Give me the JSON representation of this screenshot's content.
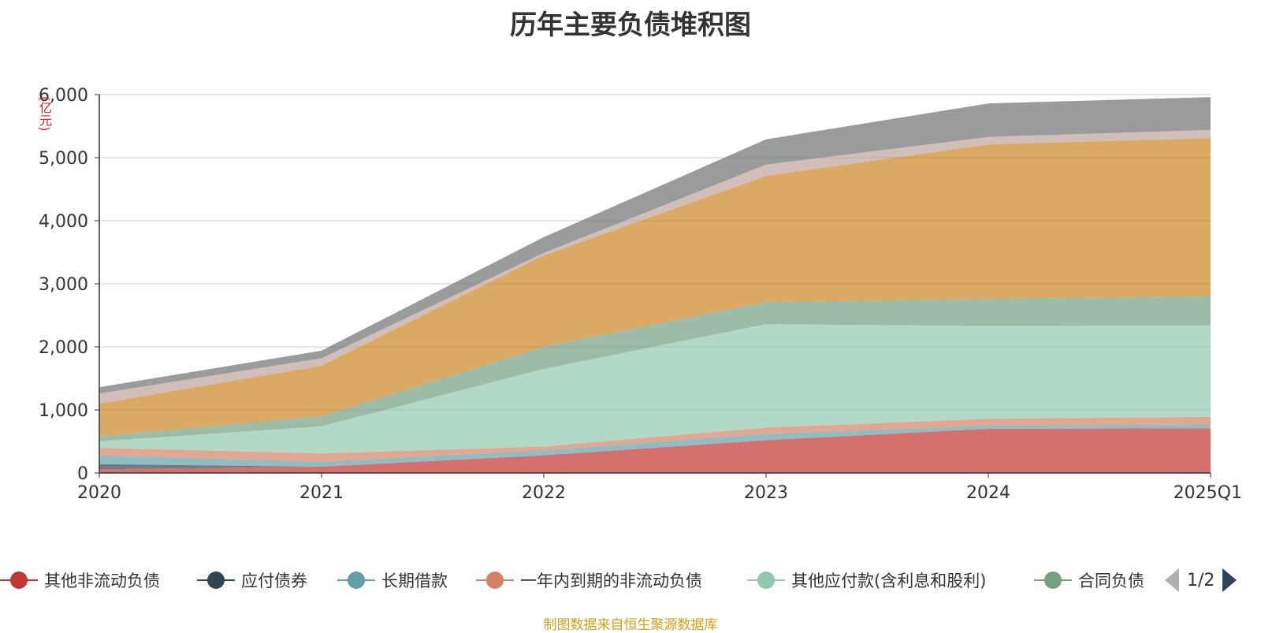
{
  "title": "历年主要负债堆积图",
  "unit_label": "(亿元)",
  "source_note": "制图数据来自恒生聚源数据库",
  "pager": {
    "text": "1/2"
  },
  "chart_data": {
    "type": "area",
    "stacked": true,
    "title": "历年主要负债堆积图",
    "ylabel": "(亿元)",
    "categories": [
      "2020",
      "2021",
      "2022",
      "2023",
      "2024",
      "2025Q1"
    ],
    "ylim": [
      0,
      6000
    ],
    "yticks": [
      0,
      1000,
      2000,
      3000,
      4000,
      5000,
      6000
    ],
    "ytick_labels": [
      "0",
      "1,000",
      "2,000",
      "3,000",
      "4,000",
      "5,000",
      "6,000"
    ],
    "grid": true,
    "legend_position": "bottom",
    "series": [
      {
        "name": "其他非流动负债",
        "color": "#c23531",
        "values": [
          60,
          100,
          280,
          520,
          700,
          710
        ]
      },
      {
        "name": "应付债券",
        "color": "#2f4554",
        "values": [
          80,
          0,
          0,
          0,
          0,
          0
        ]
      },
      {
        "name": "长期借款",
        "color": "#61a0a8",
        "values": [
          140,
          80,
          80,
          100,
          50,
          60
        ]
      },
      {
        "name": "一年内到期的非流动负债",
        "color": "#d48265",
        "values": [
          120,
          130,
          60,
          100,
          110,
          120
        ]
      },
      {
        "name": "其他应付款(含利息和股利)",
        "color": "#91c7ae",
        "values": [
          100,
          430,
          1230,
          1640,
          1470,
          1450
        ]
      },
      {
        "name": "合同负债",
        "color": "#749f83",
        "values": [
          80,
          160,
          350,
          350,
          430,
          460
        ]
      },
      {
        "name": "",
        "color": "#ca8622",
        "values": [
          520,
          800,
          1450,
          2000,
          2450,
          2510
        ]
      },
      {
        "name": "",
        "color": "#bda29a",
        "values": [
          160,
          120,
          40,
          180,
          120,
          130
        ]
      },
      {
        "name": "",
        "color": "#6e7074",
        "values": [
          100,
          120,
          250,
          400,
          530,
          520
        ]
      }
    ]
  }
}
